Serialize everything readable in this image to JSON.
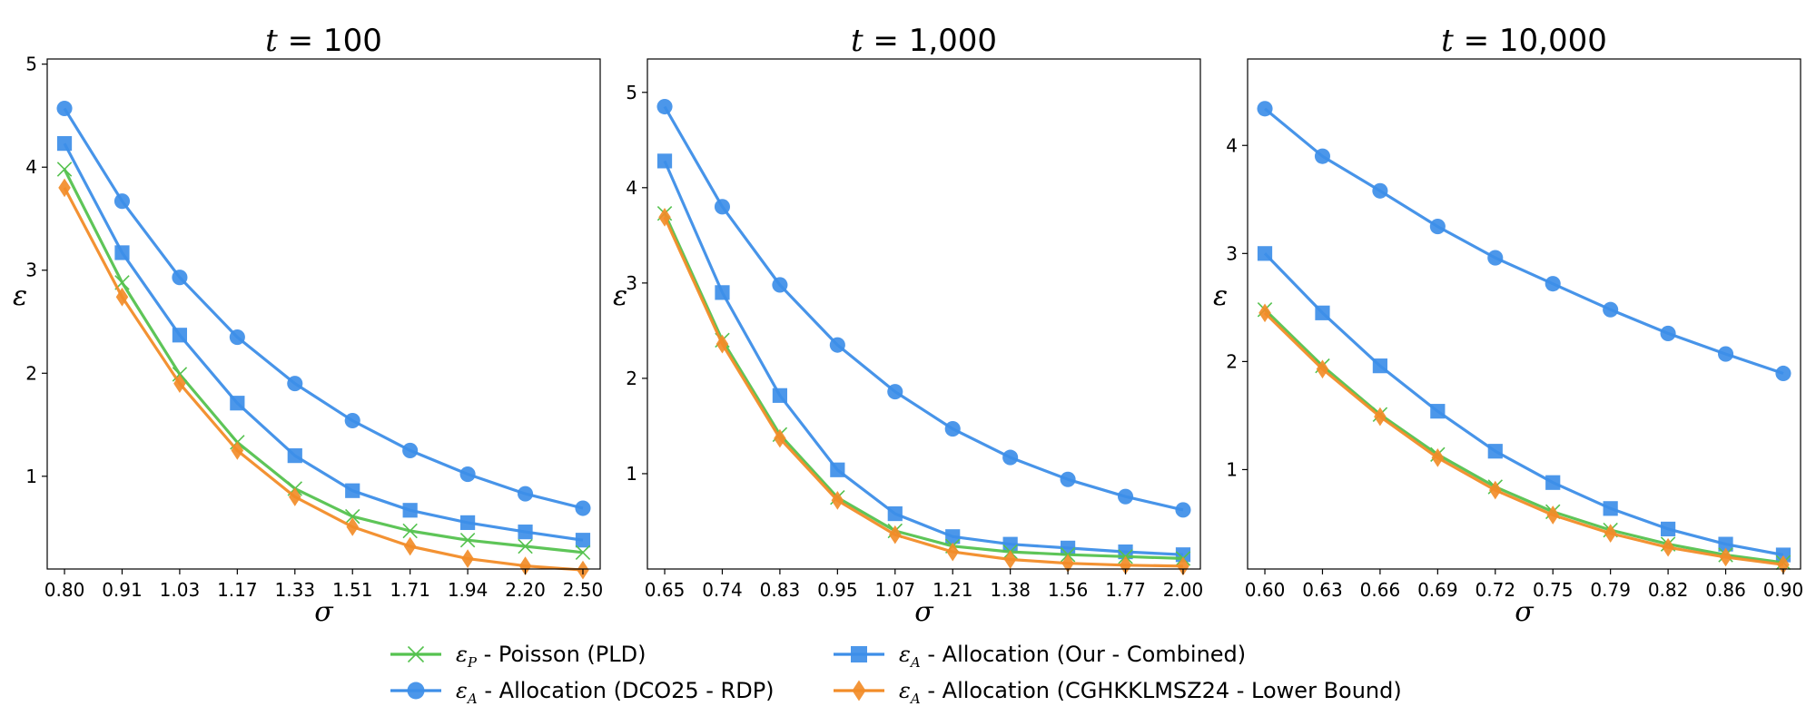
{
  "chart_data": [
    {
      "type": "line",
      "title_prefix": "t",
      "title_value": "= 100",
      "xlabel": "σ",
      "ylabel": "ε",
      "categories": [
        "0.80",
        "0.91",
        "1.03",
        "1.17",
        "1.33",
        "1.51",
        "1.71",
        "1.94",
        "2.20",
        "2.50"
      ],
      "ylim": [
        0.1,
        5.05
      ],
      "yticks": [
        "1",
        "2",
        "3",
        "4",
        "5"
      ],
      "series": [
        {
          "key": "poisson",
          "values": [
            3.98,
            2.88,
            1.99,
            1.33,
            0.88,
            0.61,
            0.47,
            0.38,
            0.32,
            0.26
          ]
        },
        {
          "key": "rdp",
          "values": [
            4.57,
            3.67,
            2.93,
            2.35,
            1.9,
            1.54,
            1.25,
            1.02,
            0.83,
            0.69
          ]
        },
        {
          "key": "combined",
          "values": [
            4.23,
            3.17,
            2.37,
            1.71,
            1.2,
            0.86,
            0.67,
            0.55,
            0.46,
            0.38
          ]
        },
        {
          "key": "lower",
          "values": [
            3.8,
            2.74,
            1.9,
            1.25,
            0.8,
            0.51,
            0.32,
            0.2,
            0.13,
            0.09
          ]
        }
      ]
    },
    {
      "type": "line",
      "title_prefix": "t",
      "title_value": "= 1,000",
      "xlabel": "σ",
      "ylabel": "ε",
      "categories": [
        "0.65",
        "0.74",
        "0.83",
        "0.95",
        "1.07",
        "1.21",
        "1.38",
        "1.56",
        "1.77",
        "2.00"
      ],
      "ylim": [
        0.0,
        5.35
      ],
      "yticks": [
        "1",
        "2",
        "3",
        "4",
        "5"
      ],
      "series": [
        {
          "key": "poisson",
          "values": [
            3.73,
            2.4,
            1.41,
            0.75,
            0.4,
            0.24,
            0.18,
            0.15,
            0.13,
            0.11
          ]
        },
        {
          "key": "rdp",
          "values": [
            4.85,
            3.8,
            2.98,
            2.35,
            1.86,
            1.47,
            1.17,
            0.94,
            0.76,
            0.62
          ]
        },
        {
          "key": "combined",
          "values": [
            4.28,
            2.9,
            1.82,
            1.04,
            0.58,
            0.34,
            0.26,
            0.22,
            0.18,
            0.15
          ]
        },
        {
          "key": "lower",
          "values": [
            3.69,
            2.36,
            1.37,
            0.72,
            0.36,
            0.18,
            0.1,
            0.06,
            0.04,
            0.03
          ]
        }
      ]
    },
    {
      "type": "line",
      "title_prefix": "t",
      "title_value": "= 10,000",
      "xlabel": "σ",
      "ylabel": "ε",
      "categories": [
        "0.60",
        "0.63",
        "0.66",
        "0.69",
        "0.72",
        "0.75",
        "0.79",
        "0.82",
        "0.86",
        "0.90"
      ],
      "ylim": [
        0.08,
        4.8
      ],
      "yticks": [
        "1",
        "2",
        "3",
        "4"
      ],
      "series": [
        {
          "key": "poisson",
          "values": [
            2.48,
            1.96,
            1.51,
            1.14,
            0.84,
            0.61,
            0.44,
            0.31,
            0.21,
            0.14
          ]
        },
        {
          "key": "rdp",
          "values": [
            4.34,
            3.9,
            3.58,
            3.25,
            2.96,
            2.72,
            2.48,
            2.26,
            2.07,
            1.89
          ]
        },
        {
          "key": "combined",
          "values": [
            3.0,
            2.45,
            1.96,
            1.54,
            1.17,
            0.88,
            0.64,
            0.45,
            0.31,
            0.21
          ]
        },
        {
          "key": "lower",
          "values": [
            2.45,
            1.93,
            1.49,
            1.11,
            0.81,
            0.58,
            0.41,
            0.28,
            0.19,
            0.12
          ]
        }
      ]
    }
  ],
  "legend": [
    {
      "key": "poisson",
      "marker": "x",
      "color": "#55c24f",
      "sym": "ε",
      "sub": "P",
      "label": " - Poisson (PLD)"
    },
    {
      "key": "rdp",
      "marker": "circle",
      "color": "#3d8ee8",
      "sym": "ε",
      "sub": "A",
      "label": " - Allocation (DCO25 - RDP)"
    },
    {
      "key": "combined",
      "marker": "square",
      "color": "#3d8ee8",
      "sym": "ε",
      "sub": "A",
      "label": " - Allocation (Our - Combined)"
    },
    {
      "key": "lower",
      "marker": "diamond",
      "color": "#f28c28",
      "sym": "ε",
      "sub": "A",
      "label": " - Allocation (CGHKKLMSZ24 - Lower Bound)"
    }
  ],
  "colors": {
    "green": "#55c24f",
    "blue": "#3d8ee8",
    "orange": "#f28c28"
  }
}
